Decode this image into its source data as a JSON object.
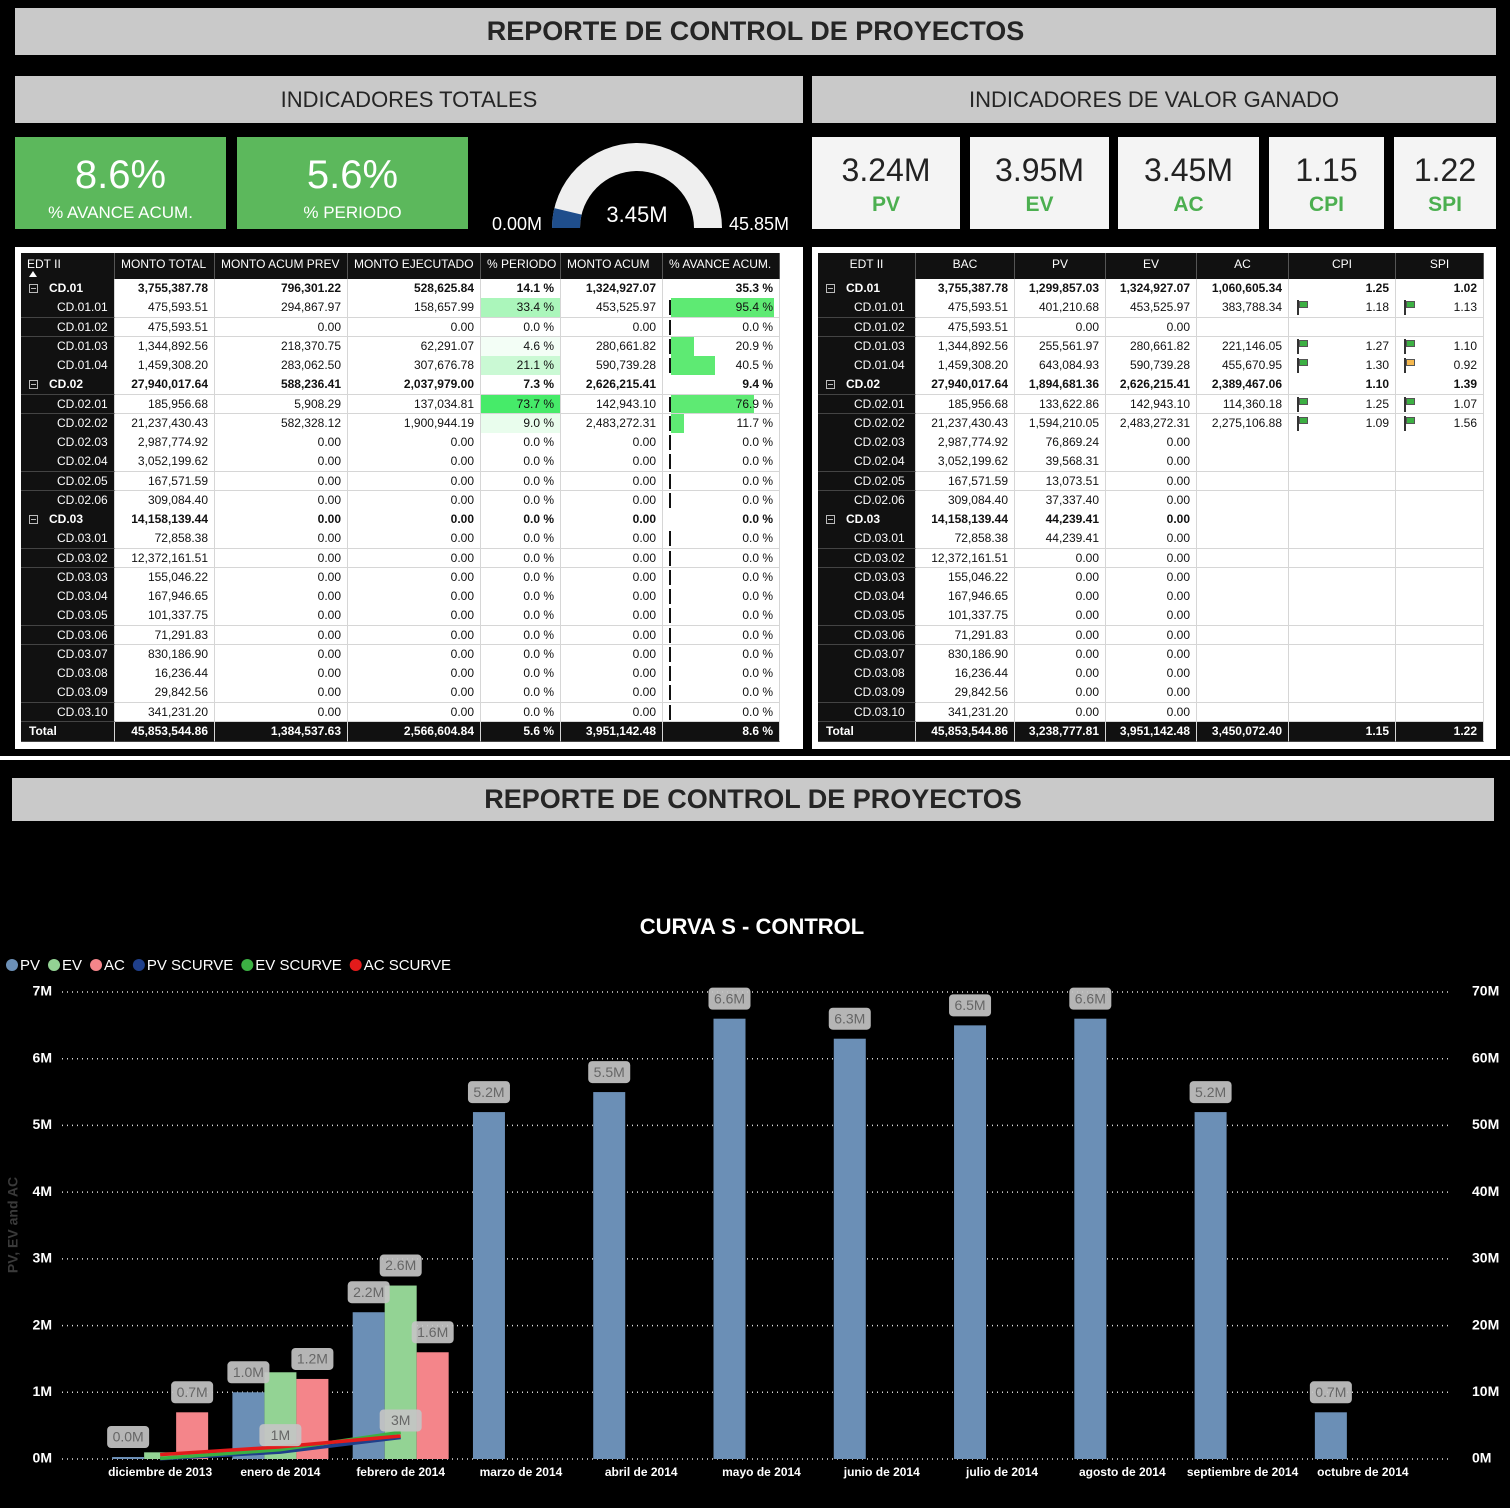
{
  "header": {
    "title": "REPORTE DE CONTROL DE PROYECTOS"
  },
  "totals_panel": {
    "title": "INDICADORES TOTALES",
    "kpis": [
      {
        "value": "8.6%",
        "label": "% AVANCE ACUM."
      },
      {
        "value": "5.6%",
        "label": "% PERIODO"
      }
    ],
    "gauge": {
      "min": 0,
      "max": 45.85,
      "value": 3.45,
      "min_label": "0.00M",
      "max_label": "45.85M",
      "value_label": "3.45M"
    }
  },
  "ev_panel": {
    "title": "INDICADORES DE VALOR GANADO",
    "cards": [
      {
        "value": "3.24M",
        "label": "PV"
      },
      {
        "value": "3.95M",
        "label": "EV"
      },
      {
        "value": "3.45M",
        "label": "AC"
      },
      {
        "value": "1.15",
        "label": "CPI"
      },
      {
        "value": "1.22",
        "label": "SPI"
      }
    ]
  },
  "table1": {
    "columns": [
      "EDT II",
      "MONTO TOTAL",
      "MONTO ACUM PREV",
      "MONTO EJECUTADO",
      "% PERIODO",
      "MONTO ACUM",
      "% AVANCE ACUM."
    ],
    "rows": [
      [
        "CD.01",
        "3,755,387.78",
        "796,301.22",
        "528,625.84",
        "14.1 %",
        "1,324,927.07",
        "35.3 %"
      ],
      [
        "CD.01.01",
        "475,593.51",
        "294,867.97",
        "158,657.99",
        "33.4 %",
        "453,525.97",
        "95.4 %"
      ],
      [
        "CD.01.02",
        "475,593.51",
        "0.00",
        "0.00",
        "0.0 %",
        "0.00",
        "0.0 %"
      ],
      [
        "CD.01.03",
        "1,344,892.56",
        "218,370.75",
        "62,291.07",
        "4.6 %",
        "280,661.82",
        "20.9 %"
      ],
      [
        "CD.01.04",
        "1,459,308.20",
        "283,062.50",
        "307,676.78",
        "21.1 %",
        "590,739.28",
        "40.5 %"
      ],
      [
        "CD.02",
        "27,940,017.64",
        "588,236.41",
        "2,037,979.00",
        "7.3 %",
        "2,626,215.41",
        "9.4 %"
      ],
      [
        "CD.02.01",
        "185,956.68",
        "5,908.29",
        "137,034.81",
        "73.7 %",
        "142,943.10",
        "76.9 %"
      ],
      [
        "CD.02.02",
        "21,237,430.43",
        "582,328.12",
        "1,900,944.19",
        "9.0 %",
        "2,483,272.31",
        "11.7 %"
      ],
      [
        "CD.02.03",
        "2,987,774.92",
        "0.00",
        "0.00",
        "0.0 %",
        "0.00",
        "0.0 %"
      ],
      [
        "CD.02.04",
        "3,052,199.62",
        "0.00",
        "0.00",
        "0.0 %",
        "0.00",
        "0.0 %"
      ],
      [
        "CD.02.05",
        "167,571.59",
        "0.00",
        "0.00",
        "0.0 %",
        "0.00",
        "0.0 %"
      ],
      [
        "CD.02.06",
        "309,084.40",
        "0.00",
        "0.00",
        "0.0 %",
        "0.00",
        "0.0 %"
      ],
      [
        "CD.03",
        "14,158,139.44",
        "0.00",
        "0.00",
        "0.0 %",
        "0.00",
        "0.0 %"
      ],
      [
        "CD.03.01",
        "72,858.38",
        "0.00",
        "0.00",
        "0.0 %",
        "0.00",
        "0.0 %"
      ],
      [
        "CD.03.02",
        "12,372,161.51",
        "0.00",
        "0.00",
        "0.0 %",
        "0.00",
        "0.0 %"
      ],
      [
        "CD.03.03",
        "155,046.22",
        "0.00",
        "0.00",
        "0.0 %",
        "0.00",
        "0.0 %"
      ],
      [
        "CD.03.04",
        "167,946.65",
        "0.00",
        "0.00",
        "0.0 %",
        "0.00",
        "0.0 %"
      ],
      [
        "CD.03.05",
        "101,337.75",
        "0.00",
        "0.00",
        "0.0 %",
        "0.00",
        "0.0 %"
      ],
      [
        "CD.03.06",
        "71,291.83",
        "0.00",
        "0.00",
        "0.0 %",
        "0.00",
        "0.0 %"
      ],
      [
        "CD.03.07",
        "830,186.90",
        "0.00",
        "0.00",
        "0.0 %",
        "0.00",
        "0.0 %"
      ],
      [
        "CD.03.08",
        "16,236.44",
        "0.00",
        "0.00",
        "0.0 %",
        "0.00",
        "0.0 %"
      ],
      [
        "CD.03.09",
        "29,842.56",
        "0.00",
        "0.00",
        "0.0 %",
        "0.00",
        "0.0 %"
      ],
      [
        "CD.03.10",
        "341,231.20",
        "0.00",
        "0.00",
        "0.0 %",
        "0.00",
        "0.0 %"
      ]
    ],
    "total": [
      "Total",
      "45,853,544.86",
      "1,384,537.63",
      "2,566,604.84",
      "5.6 %",
      "3,951,142.48",
      "8.6 %"
    ]
  },
  "table2": {
    "columns": [
      "EDT II",
      "BAC",
      "PV",
      "EV",
      "AC",
      "CPI",
      "SPI"
    ],
    "rows": [
      [
        "CD.01",
        "3,755,387.78",
        "1,299,857.03",
        "1,324,927.07",
        "1,060,605.34",
        "1.25",
        "1.02"
      ],
      [
        "CD.01.01",
        "475,593.51",
        "401,210.68",
        "453,525.97",
        "383,788.34",
        "1.18",
        "1.13"
      ],
      [
        "CD.01.02",
        "475,593.51",
        "0.00",
        "0.00"
      ],
      [
        "CD.01.03",
        "1,344,892.56",
        "255,561.97",
        "280,661.82",
        "221,146.05",
        "1.27",
        "1.10"
      ],
      [
        "CD.01.04",
        "1,459,308.20",
        "643,084.93",
        "590,739.28",
        "455,670.95",
        "1.30",
        "0.92"
      ],
      [
        "CD.02",
        "27,940,017.64",
        "1,894,681.36",
        "2,626,215.41",
        "2,389,467.06",
        "1.10",
        "1.39"
      ],
      [
        "CD.02.01",
        "185,956.68",
        "133,622.86",
        "142,943.10",
        "114,360.18",
        "1.25",
        "1.07"
      ],
      [
        "CD.02.02",
        "21,237,430.43",
        "1,594,210.05",
        "2,483,272.31",
        "2,275,106.88",
        "1.09",
        "1.56"
      ],
      [
        "CD.02.03",
        "2,987,774.92",
        "76,869.24",
        "0.00"
      ],
      [
        "CD.02.04",
        "3,052,199.62",
        "39,568.31",
        "0.00"
      ],
      [
        "CD.02.05",
        "167,571.59",
        "13,073.51",
        "0.00"
      ],
      [
        "CD.02.06",
        "309,084.40",
        "37,337.40",
        "0.00"
      ],
      [
        "CD.03",
        "14,158,139.44",
        "44,239.41",
        "0.00"
      ],
      [
        "CD.03.01",
        "72,858.38",
        "44,239.41",
        "0.00"
      ],
      [
        "CD.03.02",
        "12,372,161.51",
        "0.00",
        "0.00"
      ],
      [
        "CD.03.03",
        "155,046.22",
        "0.00",
        "0.00"
      ],
      [
        "CD.03.04",
        "167,946.65",
        "0.00",
        "0.00"
      ],
      [
        "CD.03.05",
        "101,337.75",
        "0.00",
        "0.00"
      ],
      [
        "CD.03.06",
        "71,291.83",
        "0.00",
        "0.00"
      ],
      [
        "CD.03.07",
        "830,186.90",
        "0.00",
        "0.00"
      ],
      [
        "CD.03.08",
        "16,236.44",
        "0.00",
        "0.00"
      ],
      [
        "CD.03.09",
        "29,842.56",
        "0.00",
        "0.00"
      ],
      [
        "CD.03.10",
        "341,231.20",
        "0.00",
        "0.00"
      ]
    ],
    "total": [
      "Total",
      "45,853,544.86",
      "3,238,777.81",
      "3,951,142.48",
      "3,450,072.40",
      "1.15",
      "1.22"
    ]
  },
  "chart_data": {
    "type": "bar",
    "title": "CURVA S - CONTROL",
    "ylabel": "PV, EV and AC",
    "categories": [
      "diciembre de 2013",
      "enero de 2014",
      "febrero de 2014",
      "marzo de 2014",
      "abril de 2014",
      "mayo de 2014",
      "junio de 2014",
      "julio de 2014",
      "agosto de 2014",
      "septiembre de 2014",
      "octubre de 2014"
    ],
    "series": [
      {
        "name": "PV",
        "type": "bar",
        "color": "#6b8fb6",
        "values": [
          0.03,
          1.0,
          2.2,
          5.2,
          5.5,
          6.6,
          6.3,
          6.5,
          6.6,
          5.2,
          0.7
        ],
        "value_labels": [
          "0.0M",
          "1.0M",
          "2.2M",
          "5.2M",
          "5.5M",
          "6.6M",
          "6.3M",
          "6.5M",
          "6.6M",
          "5.2M",
          "0.7M"
        ]
      },
      {
        "name": "EV",
        "type": "bar",
        "color": "#93d394",
        "values": [
          0.1,
          1.3,
          2.6,
          null,
          null,
          null,
          null,
          null,
          null,
          null,
          null
        ],
        "value_labels": [
          null,
          null,
          "2.6M",
          null,
          null,
          null,
          null,
          null,
          null,
          null,
          null
        ]
      },
      {
        "name": "AC",
        "type": "bar",
        "color": "#f4858a",
        "values": [
          0.7,
          1.2,
          1.6,
          null,
          null,
          null,
          null,
          null,
          null,
          null,
          null
        ],
        "value_labels": [
          "0.7M",
          "1.2M",
          "1.6M",
          null,
          null,
          null,
          null,
          null,
          null,
          null,
          null
        ]
      },
      {
        "name": "PV SCURVE",
        "type": "line",
        "axis": "y2",
        "color": "#1f3f8a",
        "values": [
          0.03,
          1.03,
          3.23,
          null,
          null,
          null,
          null,
          null,
          null,
          null,
          null
        ],
        "value_labels": [
          null,
          "1M",
          "3M",
          null,
          null,
          null,
          null,
          null,
          null,
          null,
          null
        ]
      },
      {
        "name": "EV SCURVE",
        "type": "line",
        "axis": "y2",
        "color": "#3cb043",
        "values": [
          0.1,
          1.4,
          4.0,
          null,
          null,
          null,
          null,
          null,
          null,
          null,
          null
        ]
      },
      {
        "name": "AC SCURVE",
        "type": "line",
        "axis": "y2",
        "color": "#e31b1b",
        "values": [
          0.66,
          1.81,
          3.45,
          null,
          null,
          null,
          null,
          null,
          null,
          null,
          null
        ]
      }
    ],
    "ylim": [
      0,
      7
    ],
    "yticks": [
      {
        "value": 0,
        "label": "0M"
      },
      {
        "value": 1,
        "label": "1M"
      },
      {
        "value": 2,
        "label": "2M"
      },
      {
        "value": 3,
        "label": "3M"
      },
      {
        "value": 4,
        "label": "4M"
      },
      {
        "value": 5,
        "label": "5M"
      },
      {
        "value": 6,
        "label": "6M"
      },
      {
        "value": 7,
        "label": "7M"
      }
    ],
    "y2lim": [
      0,
      70
    ],
    "y2ticks": [
      {
        "value": 0,
        "label": "0M"
      },
      {
        "value": 10,
        "label": "10M"
      },
      {
        "value": 20,
        "label": "20M"
      },
      {
        "value": 30,
        "label": "30M"
      },
      {
        "value": 40,
        "label": "40M"
      },
      {
        "value": 50,
        "label": "50M"
      },
      {
        "value": 60,
        "label": "60M"
      },
      {
        "value": 70,
        "label": "70M"
      }
    ],
    "grid": true,
    "legend": "top-left"
  }
}
